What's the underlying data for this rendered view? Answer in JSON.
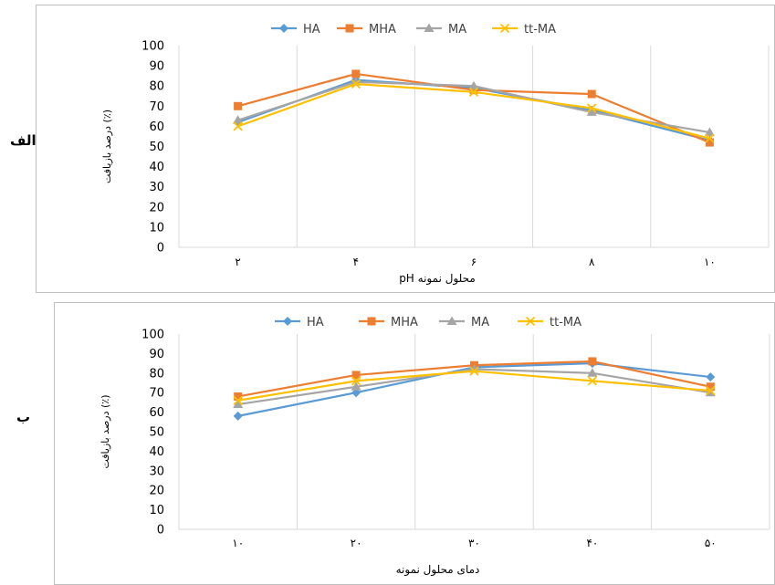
{
  "panels": [
    {
      "label": "الف"
    },
    {
      "label": "ب"
    }
  ],
  "colors": {
    "HA": "#5B9BD5",
    "MHA": "#ED7D31",
    "MA": "#A5A5A5",
    "tt-MA": "#FFC000",
    "grid": "#d9d9d9",
    "frame": "#bfbfbf",
    "text": "#404040"
  },
  "chart_data": [
    {
      "type": "line",
      "title": "",
      "xlabel": "pH محلول نمونه",
      "ylabel": "درصد بازیافت (٪)",
      "categories": [
        "۲",
        "۴",
        "۶",
        "۸",
        "۱۰"
      ],
      "ylim": [
        0,
        100
      ],
      "yticks": [
        "0",
        "10",
        "20",
        "30",
        "40",
        "50",
        "60",
        "70",
        "80",
        "90",
        "100"
      ],
      "legend_position": "top",
      "series": [
        {
          "name": "HA",
          "marker": "diamond",
          "values": [
            62,
            83,
            79,
            68,
            53
          ]
        },
        {
          "name": "MHA",
          "marker": "square",
          "values": [
            70,
            86,
            78,
            76,
            52
          ]
        },
        {
          "name": "MA",
          "marker": "triangle",
          "values": [
            63,
            82,
            80,
            67,
            57
          ]
        },
        {
          "name": "tt-MA",
          "marker": "x",
          "values": [
            60,
            81,
            77,
            69,
            54
          ]
        }
      ]
    },
    {
      "type": "line",
      "title": "",
      "xlabel": "دمای محلول نمونه",
      "ylabel": "درصد بازیافت (٪)",
      "categories": [
        "۱۰",
        "۲۰",
        "۳۰",
        "۴۰",
        "۵۰"
      ],
      "ylim": [
        0,
        100
      ],
      "yticks": [
        "0",
        "10",
        "20",
        "30",
        "40",
        "50",
        "60",
        "70",
        "80",
        "90",
        "100"
      ],
      "legend_position": "top",
      "series": [
        {
          "name": "HA",
          "marker": "diamond",
          "values": [
            58,
            70,
            83,
            85,
            78
          ]
        },
        {
          "name": "MHA",
          "marker": "square",
          "values": [
            68,
            79,
            84,
            86,
            73
          ]
        },
        {
          "name": "MA",
          "marker": "triangle",
          "values": [
            64,
            73,
            82,
            80,
            70
          ]
        },
        {
          "name": "tt-MA",
          "marker": "x",
          "values": [
            66,
            76,
            81,
            76,
            71
          ]
        }
      ]
    }
  ]
}
